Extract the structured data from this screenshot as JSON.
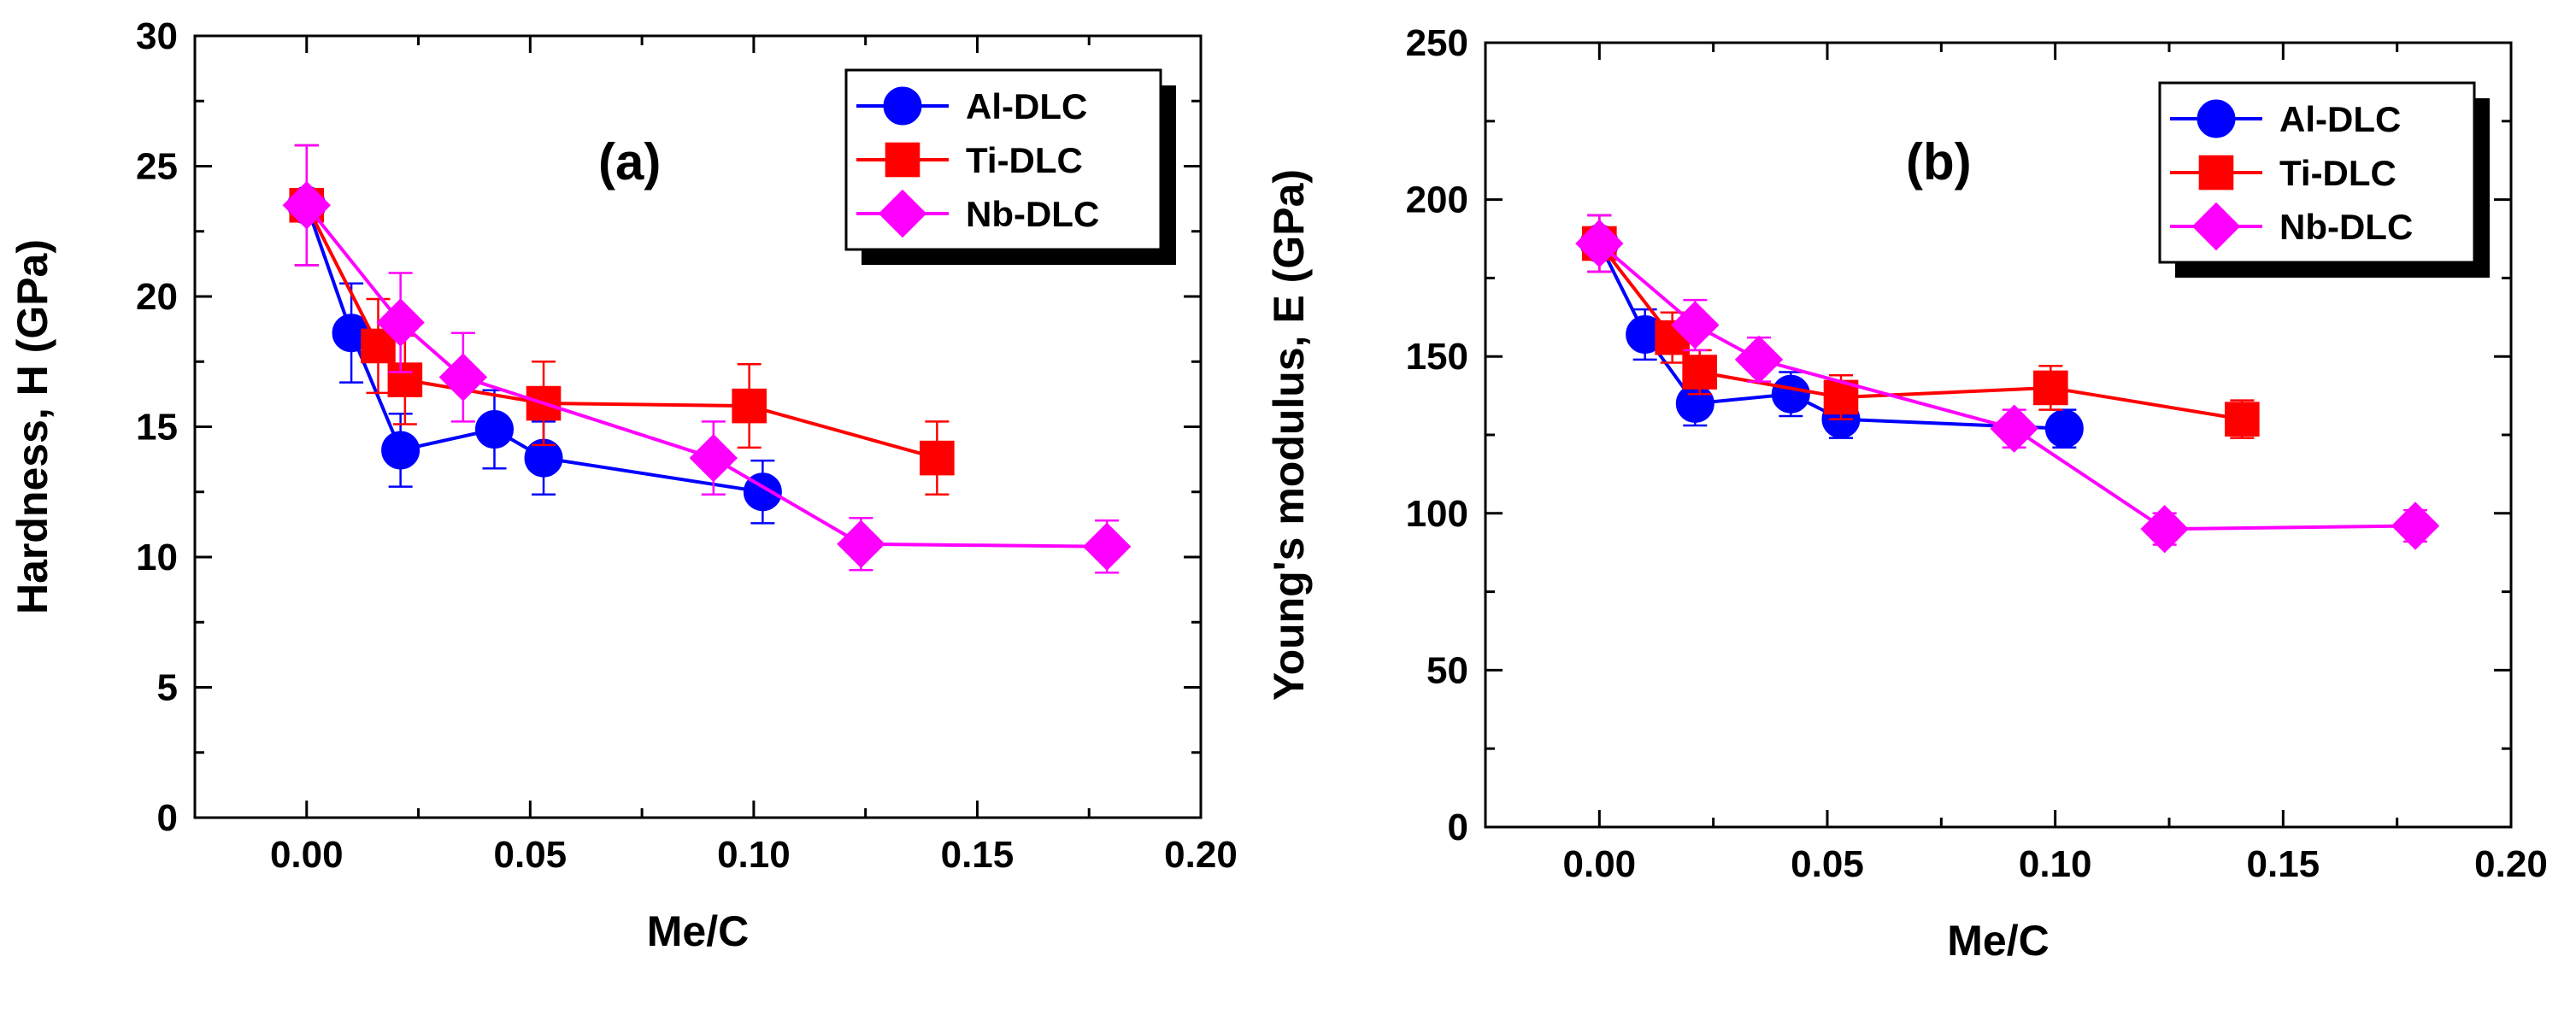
{
  "chart_data": [
    {
      "type": "line",
      "panel_label": "(a)",
      "xlabel": "Me/C",
      "ylabel": "Hardness, H (GPa)",
      "xlim": [
        -0.025,
        0.2
      ],
      "ylim": [
        0,
        30
      ],
      "xticks": [
        0.0,
        0.05,
        0.1,
        0.15,
        0.2
      ],
      "xtick_labels": [
        "0.00",
        "0.05",
        "0.10",
        "0.15",
        "0.20"
      ],
      "yticks": [
        0,
        5,
        10,
        15,
        20,
        25,
        30
      ],
      "ytick_labels": [
        "0",
        "5",
        "10",
        "15",
        "20",
        "25",
        "30"
      ],
      "legend_position": "top-right",
      "series": [
        {
          "name": "Al-DLC",
          "color": "#0000ff",
          "marker": "circle",
          "x": [
            0.0,
            0.01,
            0.021,
            0.042,
            0.053,
            0.102
          ],
          "y": [
            23.5,
            18.6,
            14.1,
            14.9,
            13.8,
            12.5
          ],
          "err": [
            2.3,
            1.9,
            1.4,
            1.5,
            1.4,
            1.2
          ]
        },
        {
          "name": "Ti-DLC",
          "color": "#ff0000",
          "marker": "square",
          "x": [
            0.0,
            0.016,
            0.022,
            0.053,
            0.099,
            0.141
          ],
          "y": [
            23.5,
            18.1,
            16.8,
            15.9,
            15.8,
            13.8
          ],
          "err": [
            2.3,
            1.8,
            1.7,
            1.6,
            1.6,
            1.4
          ]
        },
        {
          "name": "Nb-DLC",
          "color": "#ff00ff",
          "marker": "diamond",
          "x": [
            0.0,
            0.021,
            0.035,
            0.091,
            0.124,
            0.179
          ],
          "y": [
            23.5,
            19.0,
            16.9,
            13.8,
            10.5,
            10.4
          ],
          "err": [
            2.3,
            1.9,
            1.7,
            1.4,
            1.0,
            1.0
          ]
        }
      ]
    },
    {
      "type": "line",
      "panel_label": "(b)",
      "xlabel": "Me/C",
      "ylabel": "Young's modulus, E (GPa)",
      "xlim": [
        -0.025,
        0.2
      ],
      "ylim": [
        0,
        250
      ],
      "xticks": [
        0.0,
        0.05,
        0.1,
        0.15,
        0.2
      ],
      "xtick_labels": [
        "0.00",
        "0.05",
        "0.10",
        "0.15",
        "0.20"
      ],
      "yticks": [
        0,
        50,
        100,
        150,
        200,
        250
      ],
      "ytick_labels": [
        "0",
        "50",
        "100",
        "150",
        "200",
        "250"
      ],
      "legend_position": "top-right",
      "series": [
        {
          "name": "Al-DLC",
          "color": "#0000ff",
          "marker": "circle",
          "x": [
            0.0,
            0.01,
            0.021,
            0.042,
            0.053,
            0.102
          ],
          "y": [
            186,
            157,
            135,
            138,
            130,
            127
          ],
          "err": [
            9,
            8,
            7,
            7,
            6,
            6
          ]
        },
        {
          "name": "Ti-DLC",
          "color": "#ff0000",
          "marker": "square",
          "x": [
            0.0,
            0.016,
            0.022,
            0.053,
            0.099,
            0.141
          ],
          "y": [
            186,
            156,
            145,
            137,
            140,
            130
          ],
          "err": [
            9,
            8,
            7,
            7,
            7,
            6
          ]
        },
        {
          "name": "Nb-DLC",
          "color": "#ff00ff",
          "marker": "diamond",
          "x": [
            0.0,
            0.021,
            0.035,
            0.091,
            0.124,
            0.179
          ],
          "y": [
            186,
            160,
            149,
            127,
            95,
            96
          ],
          "err": [
            9,
            8,
            7,
            6,
            5,
            5
          ]
        }
      ]
    }
  ]
}
